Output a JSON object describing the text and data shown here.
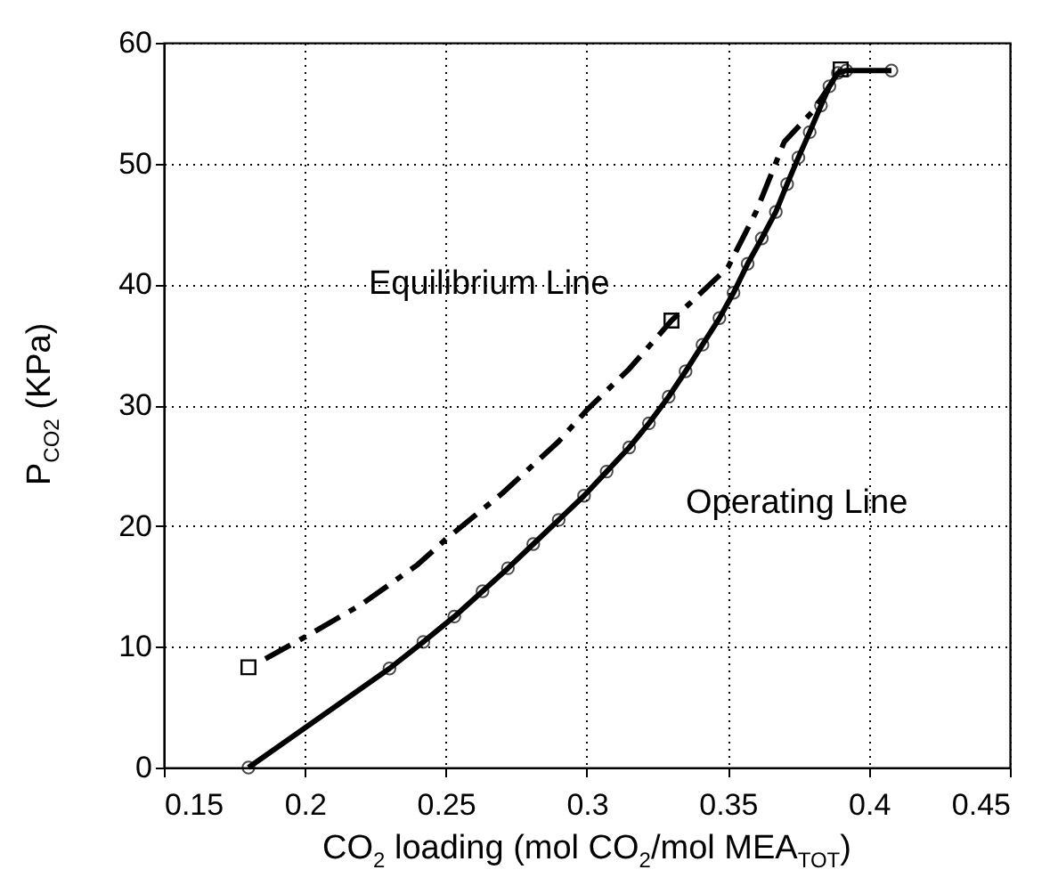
{
  "chart_data": {
    "type": "line",
    "xlabel": "CO$_{2}$ loading (mol CO$_{2}$/mol MEA$_{TOT}$)",
    "ylabel": "P$_{CO2}$ (KPa)",
    "xlim": [
      0.15,
      0.45
    ],
    "xticks": [
      0.15,
      0.2,
      0.25,
      0.3,
      0.35,
      0.4,
      0.45
    ],
    "ylim": [
      0,
      60
    ],
    "yticks": [
      0,
      10,
      20,
      30,
      40,
      50,
      60
    ],
    "grid": true,
    "series": [
      {
        "name": "Equilibrium Line",
        "type": "line",
        "color": "#000000",
        "line_style": "dashed",
        "marker": "none",
        "x": [
          0.186,
          0.2,
          0.22,
          0.24,
          0.25,
          0.27,
          0.29,
          0.3,
          0.315,
          0.33,
          0.35,
          0.36,
          0.37,
          0.38,
          0.39
        ],
        "values": [
          9,
          10.8,
          13.5,
          16.8,
          18.9,
          22.7,
          27,
          29.6,
          33,
          37,
          41.4,
          46,
          51.8,
          54.3,
          57.8
        ]
      },
      {
        "type": "scatter",
        "color": "#000000",
        "marker": "square",
        "x": [
          0.18,
          0.33,
          0.39
        ],
        "values": [
          8.3,
          37,
          57.8
        ]
      },
      {
        "name": "Operating Line",
        "type": "line",
        "color": "#000000",
        "line_style": "solid",
        "marker": "circle",
        "x": [
          0.18,
          0.23,
          0.242,
          0.253,
          0.263,
          0.272,
          0.281,
          0.29,
          0.299,
          0.307,
          0.315,
          0.322,
          0.329,
          0.335,
          0.341,
          0.347,
          0.352,
          0.357,
          0.362,
          0.367,
          0.371,
          0.375,
          0.379,
          0.383,
          0.386,
          0.389,
          0.392,
          0.408
        ],
        "values": [
          0,
          8.2,
          10.4,
          12.5,
          14.6,
          16.5,
          18.5,
          20.5,
          22.5,
          24.5,
          26.5,
          28.5,
          30.7,
          32.8,
          35,
          37.2,
          39.3,
          41.7,
          43.8,
          46,
          48.3,
          50.5,
          52.6,
          54.8,
          56.4,
          57.5,
          57.7,
          57.7
        ]
      }
    ]
  }
}
